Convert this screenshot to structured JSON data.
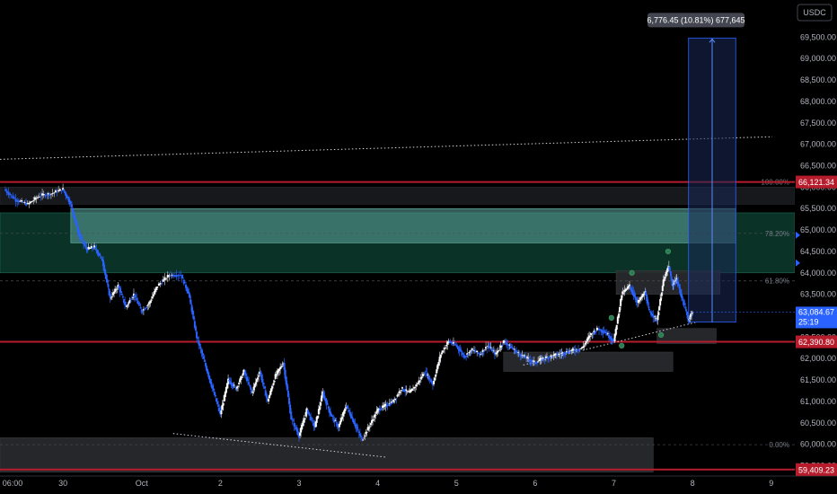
{
  "chart_data": {
    "type": "candlestick",
    "symbol_currency": "USDC",
    "price_range": [
      59300,
      70200
    ],
    "y_ticks": [
      59500,
      60000,
      60500,
      61000,
      61500,
      62000,
      62500,
      63000,
      63500,
      64000,
      64500,
      65000,
      65500,
      66000,
      66500,
      67000,
      67500,
      68000,
      68500,
      69000,
      69500
    ],
    "y_tick_labels": [
      "59,500.00",
      "60,000.00",
      "60,500.00",
      "61,000.00",
      "61,500.00",
      "62,000.00",
      "62,500.00",
      "63,000.00",
      "63,500.00",
      "64,000.00",
      "64,500.00",
      "65,000.00",
      "65,500.00",
      "66,000.00",
      "66,500.00",
      "67,000.00",
      "67,500.00",
      "68,000.00",
      "68,500.00",
      "69,000.00",
      "69,500.00"
    ],
    "x_ticks": [
      {
        "t": 0,
        "label": "06:00"
      },
      {
        "t": 0.75,
        "label": "30"
      },
      {
        "t": 1.75,
        "label": "Oct"
      },
      {
        "t": 2.75,
        "label": "2"
      },
      {
        "t": 3.75,
        "label": "3"
      },
      {
        "t": 4.75,
        "label": "4"
      },
      {
        "t": 5.75,
        "label": "5"
      },
      {
        "t": 6.75,
        "label": "6"
      },
      {
        "t": 7.75,
        "label": "7"
      },
      {
        "t": 8.75,
        "label": "8"
      },
      {
        "t": 9.75,
        "label": "9"
      }
    ],
    "t_range": [
      -0.05,
      10.05
    ],
    "price_path": [
      [
        0.0,
        65950
      ],
      [
        0.15,
        65700
      ],
      [
        0.3,
        65600
      ],
      [
        0.45,
        65800
      ],
      [
        0.6,
        65850
      ],
      [
        0.75,
        65950
      ],
      [
        0.85,
        65600
      ],
      [
        0.95,
        64900
      ],
      [
        1.05,
        64550
      ],
      [
        1.15,
        64600
      ],
      [
        1.25,
        64300
      ],
      [
        1.35,
        63400
      ],
      [
        1.45,
        63700
      ],
      [
        1.55,
        63200
      ],
      [
        1.65,
        63500
      ],
      [
        1.75,
        63100
      ],
      [
        1.85,
        63300
      ],
      [
        1.95,
        63700
      ],
      [
        2.1,
        63950
      ],
      [
        2.25,
        63950
      ],
      [
        2.35,
        63500
      ],
      [
        2.45,
        62500
      ],
      [
        2.55,
        61900
      ],
      [
        2.65,
        61300
      ],
      [
        2.75,
        60700
      ],
      [
        2.85,
        61500
      ],
      [
        2.95,
        61300
      ],
      [
        3.05,
        61700
      ],
      [
        3.15,
        61200
      ],
      [
        3.25,
        61700
      ],
      [
        3.35,
        61000
      ],
      [
        3.45,
        61600
      ],
      [
        3.55,
        61900
      ],
      [
        3.65,
        60600
      ],
      [
        3.75,
        60200
      ],
      [
        3.85,
        60800
      ],
      [
        3.95,
        60400
      ],
      [
        4.05,
        61200
      ],
      [
        4.15,
        60700
      ],
      [
        4.25,
        60400
      ],
      [
        4.35,
        60900
      ],
      [
        4.45,
        60500
      ],
      [
        4.55,
        60100
      ],
      [
        4.65,
        60450
      ],
      [
        4.75,
        60800
      ],
      [
        4.85,
        60900
      ],
      [
        4.95,
        61000
      ],
      [
        5.05,
        61300
      ],
      [
        5.15,
        61200
      ],
      [
        5.25,
        61400
      ],
      [
        5.35,
        61700
      ],
      [
        5.45,
        61400
      ],
      [
        5.55,
        62100
      ],
      [
        5.65,
        62400
      ],
      [
        5.75,
        62300
      ],
      [
        5.85,
        62050
      ],
      [
        5.95,
        62200
      ],
      [
        6.05,
        62100
      ],
      [
        6.15,
        62300
      ],
      [
        6.25,
        62100
      ],
      [
        6.35,
        62400
      ],
      [
        6.45,
        62250
      ],
      [
        6.55,
        62100
      ],
      [
        6.65,
        62000
      ],
      [
        6.75,
        61900
      ],
      [
        6.85,
        62000
      ],
      [
        6.95,
        62050
      ],
      [
        7.05,
        62100
      ],
      [
        7.15,
        62150
      ],
      [
        7.25,
        62200
      ],
      [
        7.35,
        62250
      ],
      [
        7.45,
        62550
      ],
      [
        7.55,
        62700
      ],
      [
        7.65,
        62600
      ],
      [
        7.75,
        62400
      ],
      [
        7.85,
        63500
      ],
      [
        7.95,
        63700
      ],
      [
        8.05,
        63300
      ],
      [
        8.15,
        63550
      ],
      [
        8.2,
        63100
      ],
      [
        8.3,
        62900
      ],
      [
        8.38,
        63800
      ],
      [
        8.45,
        64150
      ],
      [
        8.5,
        63700
      ],
      [
        8.55,
        63850
      ],
      [
        8.62,
        63400
      ],
      [
        8.7,
        62900
      ],
      [
        8.75,
        63084.67
      ]
    ],
    "horizontal_levels": [
      {
        "price": 66121.34,
        "label": "66,121.34",
        "kind": "resistance"
      },
      {
        "price": 62390.8,
        "label": "62,390.80",
        "kind": "support"
      },
      {
        "price": 59409.23,
        "label": "59,409.23",
        "kind": "support"
      }
    ],
    "fib_levels": [
      {
        "price": 66121.34,
        "label": "100.00%"
      },
      {
        "price": 64922.0,
        "label": "78.20%"
      },
      {
        "price": 63812.0,
        "label": "61.80%"
      },
      {
        "price": 59990.0,
        "label": "0.00%"
      }
    ],
    "zones": [
      {
        "t0": -0.05,
        "t1": 10.05,
        "p_low": 64000,
        "p_high": 65400,
        "style": "green"
      },
      {
        "t0": 0.85,
        "t1": 9.3,
        "p_low": 64700,
        "p_high": 65500,
        "style": "teal"
      },
      {
        "t0": 7.78,
        "t1": 9.1,
        "p_low": 63500,
        "p_high": 64050,
        "style": "gray"
      },
      {
        "t0": 6.35,
        "t1": 8.5,
        "p_low": 61700,
        "p_high": 62150,
        "style": "gray"
      },
      {
        "t0": 8.3,
        "t1": 9.05,
        "p_low": 62350,
        "p_high": 62700,
        "style": "gray"
      },
      {
        "t0": -0.05,
        "t1": 8.25,
        "p_low": 59350,
        "p_high": 60150,
        "style": "gray"
      },
      {
        "t0": -0.05,
        "t1": 10.05,
        "p_low": 65600,
        "p_high": 66000,
        "style": "dark"
      }
    ],
    "trendlines": [
      {
        "t0": -0.05,
        "p0": 66650,
        "t1": 10.2,
        "p1": 67200,
        "style": "dotted"
      },
      {
        "t0": 2.15,
        "p0": 60250,
        "t1": 4.85,
        "p1": 59700,
        "style": "dotted"
      },
      {
        "t0": 6.6,
        "p0": 61850,
        "t1": 8.8,
        "p1": 62850,
        "style": "dotted"
      }
    ],
    "projection": {
      "t0": 8.7,
      "t1": 9.3,
      "p_low": 62850,
      "p_high": 69480,
      "label": "6,776.45 (10.81%) 677,645"
    },
    "current_price": {
      "value": "63,084.67",
      "countdown": "25:19"
    },
    "markers": [
      {
        "t": 7.72,
        "p": 62950
      },
      {
        "t": 7.85,
        "p": 62300
      },
      {
        "t": 7.98,
        "p": 64000
      },
      {
        "t": 8.35,
        "p": 62550
      },
      {
        "t": 8.44,
        "p": 64500
      }
    ]
  }
}
